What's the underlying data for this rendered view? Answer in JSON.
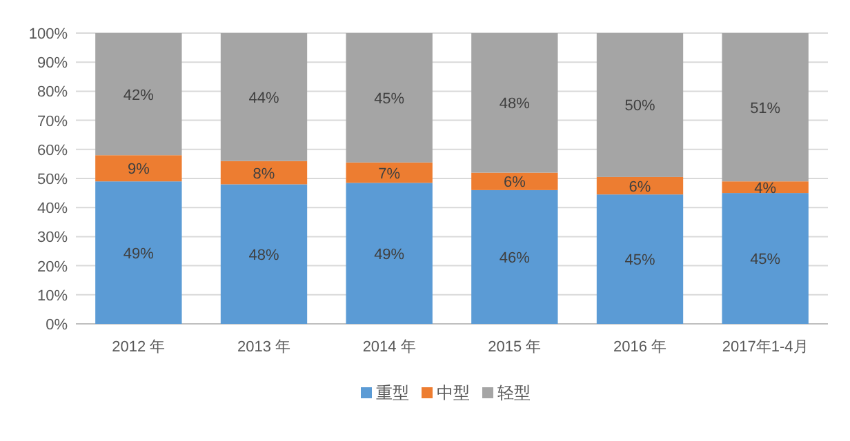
{
  "chart_data": {
    "type": "bar",
    "stacked": true,
    "categories": [
      "2012 年",
      "2013 年",
      "2014 年",
      "2015 年",
      "2016 年",
      "2017年1-4月"
    ],
    "series": [
      {
        "name": "重型",
        "color": "#5b9bd5",
        "values": [
          49,
          48,
          48.5,
          46,
          44.5,
          45
        ],
        "value_labels": [
          "49%",
          "48%",
          "49%",
          "46%",
          "45%",
          "45%"
        ]
      },
      {
        "name": "中型",
        "color": "#ed7d31",
        "values": [
          9,
          8,
          7,
          6,
          6,
          4
        ],
        "value_labels": [
          "9%",
          "8%",
          "7%",
          "6%",
          "6%",
          "4%"
        ]
      },
      {
        "name": "轻型",
        "color": "#a5a5a5",
        "values": [
          42,
          44,
          44.5,
          48,
          49.5,
          51
        ],
        "value_labels": [
          "42%",
          "44%",
          "45%",
          "48%",
          "50%",
          "51%"
        ]
      }
    ],
    "ylim": [
      0,
      100
    ],
    "yticks": [
      {
        "value": 0,
        "label": "0%"
      },
      {
        "value": 10,
        "label": "10%"
      },
      {
        "value": 20,
        "label": "20%"
      },
      {
        "value": 30,
        "label": "30%"
      },
      {
        "value": 40,
        "label": "40%"
      },
      {
        "value": 50,
        "label": "50%"
      },
      {
        "value": 60,
        "label": "60%"
      },
      {
        "value": 70,
        "label": "70%"
      },
      {
        "value": 80,
        "label": "80%"
      },
      {
        "value": 90,
        "label": "90%"
      },
      {
        "value": 100,
        "label": "100%"
      }
    ],
    "grid": "y",
    "legend": "bottom"
  }
}
